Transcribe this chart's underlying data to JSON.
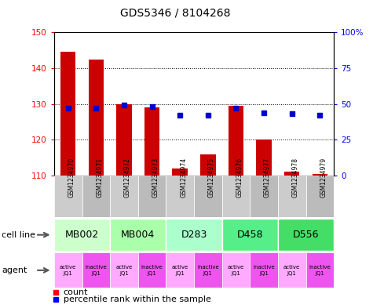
{
  "title": "GDS5346 / 8104268",
  "samples": [
    "GSM1234970",
    "GSM1234971",
    "GSM1234972",
    "GSM1234973",
    "GSM1234974",
    "GSM1234975",
    "GSM1234976",
    "GSM1234977",
    "GSM1234978",
    "GSM1234979"
  ],
  "counts": [
    144.5,
    142.5,
    130.0,
    129.0,
    112.0,
    116.0,
    129.5,
    120.0,
    111.0,
    110.5
  ],
  "percentiles": [
    47,
    47,
    49,
    48,
    42,
    42,
    47,
    44,
    43,
    42
  ],
  "ylim_left": [
    110,
    150
  ],
  "ylim_right": [
    0,
    100
  ],
  "yticks_left": [
    110,
    120,
    130,
    140,
    150
  ],
  "yticks_right": [
    0,
    25,
    50,
    75,
    100
  ],
  "cell_lines": [
    {
      "label": "MB002",
      "cols": [
        0,
        1
      ],
      "color": "#ccffcc"
    },
    {
      "label": "MB004",
      "cols": [
        2,
        3
      ],
      "color": "#aaffaa"
    },
    {
      "label": "D283",
      "cols": [
        4,
        5
      ],
      "color": "#aaffcc"
    },
    {
      "label": "D458",
      "cols": [
        6,
        7
      ],
      "color": "#55ee88"
    },
    {
      "label": "D556",
      "cols": [
        8,
        9
      ],
      "color": "#44dd66"
    }
  ],
  "agents": [
    "active\nJQ1",
    "inactive\nJQ1",
    "active\nJQ1",
    "inactive\nJQ1",
    "active\nJQ1",
    "inactive\nJQ1",
    "active\nJQ1",
    "inactive\nJQ1",
    "active\nJQ1",
    "inactive\nJQ1"
  ],
  "active_color": "#ffaaff",
  "inactive_color": "#ee55ee",
  "bar_color": "#cc0000",
  "dot_color": "#0000cc",
  "bar_bottom": 110,
  "grid_lines": [
    120,
    130,
    140
  ],
  "sample_bg_even": "#cccccc",
  "sample_bg_odd": "#bbbbbb",
  "left_label_color": "#888888"
}
